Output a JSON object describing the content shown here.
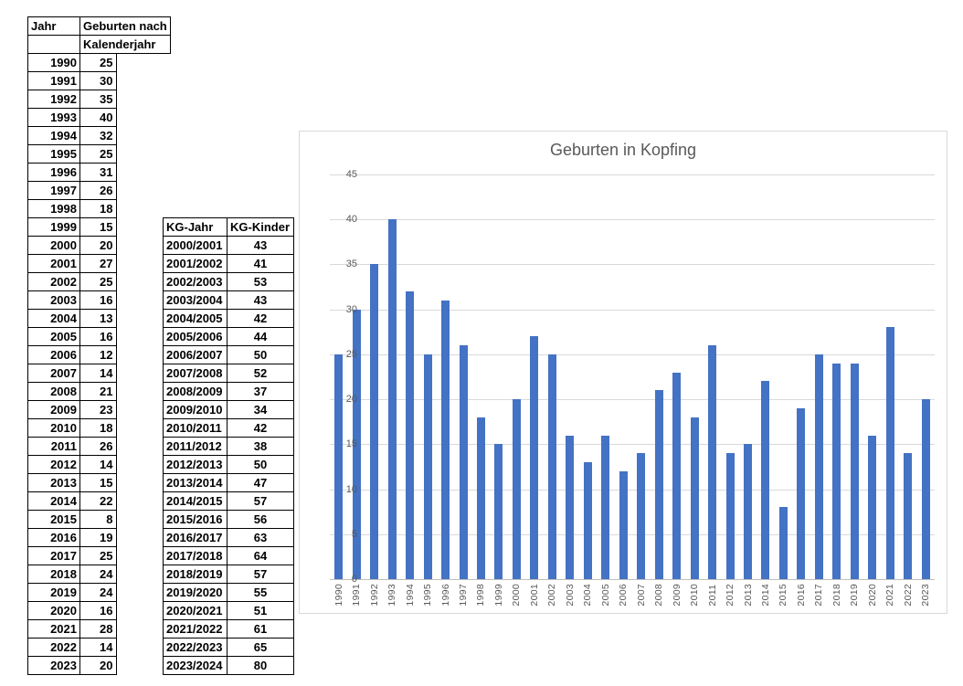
{
  "left_table": {
    "header": {
      "col1": "Jahr",
      "col2_line1": "Geburten nach",
      "col2_line2": "Kalenderjahr"
    },
    "rows": [
      [
        "1990",
        "25"
      ],
      [
        "1991",
        "30"
      ],
      [
        "1992",
        "35"
      ],
      [
        "1993",
        "40"
      ],
      [
        "1994",
        "32"
      ],
      [
        "1995",
        "25"
      ],
      [
        "1996",
        "31"
      ],
      [
        "1997",
        "26"
      ],
      [
        "1998",
        "18"
      ],
      [
        "1999",
        "15"
      ],
      [
        "2000",
        "20"
      ],
      [
        "2001",
        "27"
      ],
      [
        "2002",
        "25"
      ],
      [
        "2003",
        "16"
      ],
      [
        "2004",
        "13"
      ],
      [
        "2005",
        "16"
      ],
      [
        "2006",
        "12"
      ],
      [
        "2007",
        "14"
      ],
      [
        "2008",
        "21"
      ],
      [
        "2009",
        "23"
      ],
      [
        "2010",
        "18"
      ],
      [
        "2011",
        "26"
      ],
      [
        "2012",
        "14"
      ],
      [
        "2013",
        "15"
      ],
      [
        "2014",
        "22"
      ],
      [
        "2015",
        "8"
      ],
      [
        "2016",
        "19"
      ],
      [
        "2017",
        "25"
      ],
      [
        "2018",
        "24"
      ],
      [
        "2019",
        "24"
      ],
      [
        "2020",
        "16"
      ],
      [
        "2021",
        "28"
      ],
      [
        "2022",
        "14"
      ],
      [
        "2023",
        "20"
      ]
    ]
  },
  "kg_table": {
    "headers": [
      "KG-Jahr",
      "KG-Kinder"
    ],
    "rows": [
      [
        "2000/2001",
        "43"
      ],
      [
        "2001/2002",
        "41"
      ],
      [
        "2002/2003",
        "53"
      ],
      [
        "2003/2004",
        "43"
      ],
      [
        "2004/2005",
        "42"
      ],
      [
        "2005/2006",
        "44"
      ],
      [
        "2006/2007",
        "50"
      ],
      [
        "2007/2008",
        "52"
      ],
      [
        "2008/2009",
        "37"
      ],
      [
        "2009/2010",
        "34"
      ],
      [
        "2010/2011",
        "42"
      ],
      [
        "2011/2012",
        "38"
      ],
      [
        "2012/2013",
        "50"
      ],
      [
        "2013/2014",
        "47"
      ],
      [
        "2014/2015",
        "57"
      ],
      [
        "2015/2016",
        "56"
      ],
      [
        "2016/2017",
        "63"
      ],
      [
        "2017/2018",
        "64"
      ],
      [
        "2018/2019",
        "57"
      ],
      [
        "2019/2020",
        "55"
      ],
      [
        "2020/2021",
        "51"
      ],
      [
        "2021/2022",
        "61"
      ],
      [
        "2022/2023",
        "65"
      ],
      [
        "2023/2024",
        "80"
      ]
    ]
  },
  "chart_data": {
    "type": "bar",
    "title": "Geburten in Kopfing",
    "categories": [
      "1990",
      "1991",
      "1992",
      "1993",
      "1994",
      "1995",
      "1996",
      "1997",
      "1998",
      "1999",
      "2000",
      "2001",
      "2002",
      "2003",
      "2004",
      "2005",
      "2006",
      "2007",
      "2008",
      "2009",
      "2010",
      "2011",
      "2012",
      "2013",
      "2014",
      "2015",
      "2016",
      "2017",
      "2018",
      "2019",
      "2020",
      "2021",
      "2022",
      "2023"
    ],
    "values": [
      25,
      30,
      35,
      40,
      32,
      25,
      31,
      26,
      18,
      15,
      20,
      27,
      25,
      16,
      13,
      16,
      12,
      14,
      21,
      23,
      18,
      26,
      14,
      15,
      22,
      8,
      19,
      25,
      24,
      24,
      16,
      28,
      14,
      20
    ],
    "xlabel": "",
    "ylabel": "",
    "ylim": [
      0,
      45
    ],
    "ytick_interval": 5,
    "grid": true,
    "legend_position": "none",
    "bar_color": "#4472c4"
  },
  "colors": {
    "bar": "#4472c4",
    "gridline": "#d9d9d9",
    "axis_line": "#bfbfbf",
    "axis_text": "#595959",
    "chart_title": "#595959",
    "chart_border": "#d9d9d9",
    "table_border": "#000000"
  }
}
